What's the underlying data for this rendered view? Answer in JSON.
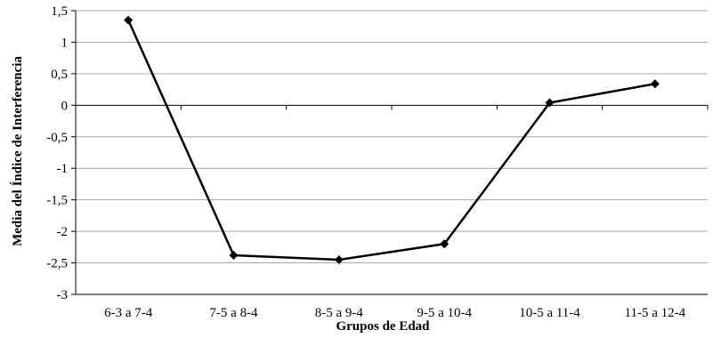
{
  "chart_data": {
    "type": "line",
    "categories": [
      "6-3 a 7-4",
      "7-5 a 8-4",
      "8-5 a 9-4",
      "9-5 a 10-4",
      "10-5 a 11-4",
      "11-5 a 12-4"
    ],
    "series": [
      {
        "values": [
          1.35,
          -2.38,
          -2.45,
          -2.2,
          0.04,
          0.34
        ]
      }
    ],
    "title": "",
    "xlabel": "Grupos de Edad",
    "ylabel": "Media del Índice de Interferencia",
    "ylim": [
      -3,
      1.5
    ],
    "yticks": [
      1.5,
      1,
      0.5,
      0,
      -0.5,
      -1,
      -1.5,
      -2,
      -2.5,
      -3
    ],
    "ytick_labels": [
      "1,5",
      "1",
      "0,5",
      "0",
      "-0,5",
      "-1",
      "-1,5",
      "-2",
      "-2,5",
      "-3"
    ],
    "grid": true,
    "marker": "diamond",
    "line_color": "#000000",
    "grid_color": "#a6a6a6"
  }
}
